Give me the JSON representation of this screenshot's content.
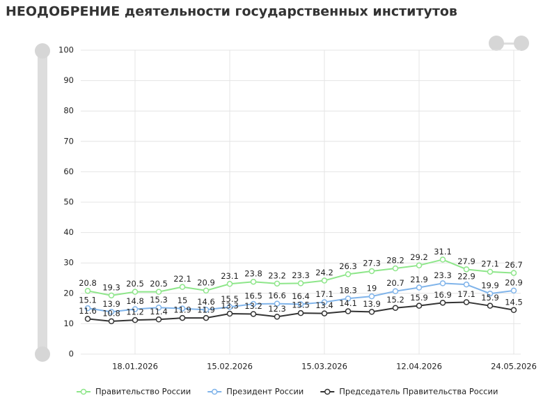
{
  "chart_data": {
    "type": "line",
    "title": "НЕОДОБРЕНИЕ деятельности государственных институтов",
    "categories": [
      null,
      null,
      "18.01.2026",
      null,
      null,
      null,
      "15.02.2026",
      null,
      null,
      null,
      "15.03.2026",
      null,
      null,
      null,
      "12.04.2026",
      null,
      null,
      null,
      "24.05.2026"
    ],
    "series": [
      {
        "name": "Правительство России",
        "color": "#8ee68a",
        "values": [
          20.8,
          19.3,
          20.5,
          20.5,
          22.1,
          20.9,
          23.1,
          23.8,
          23.2,
          23.3,
          24.2,
          26.3,
          27.3,
          28.2,
          29.2,
          31.1,
          27.9,
          27.1,
          26.7
        ]
      },
      {
        "name": "Президент России",
        "color": "#80b4ea",
        "values": [
          15.1,
          13.9,
          14.8,
          15.3,
          15,
          14.6,
          15.5,
          16.5,
          16.6,
          16.4,
          17.1,
          18.3,
          19,
          20.7,
          21.9,
          23.3,
          22.9,
          19.9,
          20.9
        ]
      },
      {
        "name": "Председатель Правительства России",
        "color": "#333333",
        "values": [
          11.6,
          10.8,
          11.2,
          11.4,
          11.9,
          11.9,
          13.3,
          13.2,
          12.3,
          13.5,
          13.4,
          14.1,
          13.9,
          15.2,
          15.9,
          16.9,
          17.1,
          15.9,
          14.5
        ]
      }
    ],
    "ylim": [
      0,
      100
    ],
    "yticks": [
      0,
      10,
      20,
      30,
      40,
      50,
      60,
      70,
      80,
      90,
      100
    ],
    "grid": true,
    "legend": "bottom"
  }
}
